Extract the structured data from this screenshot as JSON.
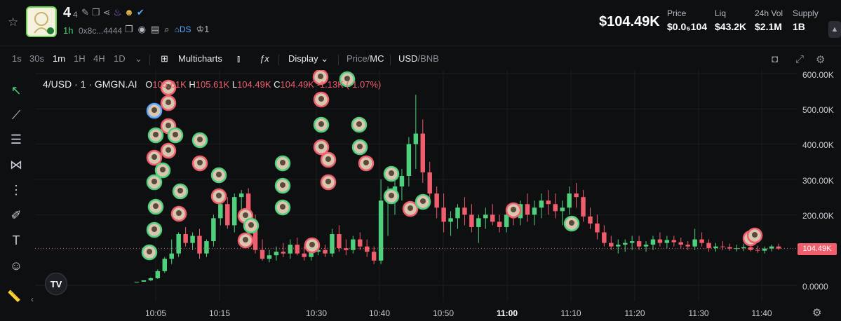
{
  "header": {
    "token_name": "4",
    "token_sub": "4",
    "age": "1h",
    "address": "0x8c...4444",
    "ds_label": "DS",
    "holders_count": "1",
    "market_cap": "$104.49K",
    "stats": [
      {
        "label": "Price",
        "value": "$0.0₅104"
      },
      {
        "label": "Liq",
        "value": "$43.2K"
      },
      {
        "label": "24h Vol",
        "value": "$2.1M"
      },
      {
        "label": "Supply",
        "value": "1B"
      }
    ]
  },
  "toolbar": {
    "intervals": [
      "1s",
      "30s",
      "1m",
      "1H",
      "4H",
      "1D"
    ],
    "active_interval": "1m",
    "multicharts": "Multicharts",
    "display": "Display",
    "price_label": "Price",
    "mc_label": "MC",
    "usd_label": "USD",
    "bnb_label": "BNB"
  },
  "legend": {
    "symbol": "4/USD · 1 · GMGN.AI",
    "o_key": "O",
    "o_val": "105.61K",
    "h_key": "H",
    "h_val": "105.61K",
    "l_key": "L",
    "l_val": "104.49K",
    "c_key": "C",
    "c_val": "104.49K",
    "change": "-1.13K (-1.07%)"
  },
  "current_price_tag": "104.49K",
  "colors": {
    "up": "#4fd07c",
    "down": "#f05d6c",
    "bg": "#0e0f11"
  },
  "chart_data": {
    "type": "candlestick",
    "y_ticks": [
      "600.00K",
      "500.00K",
      "400.00K",
      "300.00K",
      "200.00K",
      "100.00K",
      "0.0000"
    ],
    "y_range": [
      0,
      600000
    ],
    "x_ticks": [
      "10:05",
      "10:15",
      "10:30",
      "10:40",
      "10:50",
      "11:00",
      "11:10",
      "11:20",
      "11:30",
      "11:40"
    ],
    "last_price": 104490,
    "candles": [
      [
        8,
        10,
        8,
        10
      ],
      [
        10,
        14,
        10,
        14
      ],
      [
        14,
        22,
        12,
        20
      ],
      [
        20,
        45,
        18,
        40
      ],
      [
        40,
        80,
        35,
        75
      ],
      [
        75,
        130,
        60,
        90
      ],
      [
        90,
        150,
        80,
        145
      ],
      [
        145,
        165,
        110,
        120
      ],
      [
        120,
        150,
        100,
        140
      ],
      [
        140,
        160,
        75,
        90
      ],
      [
        90,
        130,
        80,
        125
      ],
      [
        125,
        200,
        110,
        190
      ],
      [
        190,
        240,
        170,
        230
      ],
      [
        230,
        250,
        160,
        170
      ],
      [
        170,
        260,
        150,
        250
      ],
      [
        250,
        270,
        200,
        260
      ],
      [
        260,
        275,
        150,
        170
      ],
      [
        170,
        200,
        90,
        100
      ],
      [
        100,
        130,
        70,
        75
      ],
      [
        75,
        100,
        65,
        85
      ],
      [
        85,
        110,
        70,
        95
      ],
      [
        95,
        120,
        80,
        90
      ],
      [
        90,
        130,
        75,
        115
      ],
      [
        115,
        135,
        85,
        90
      ],
      [
        90,
        110,
        70,
        80
      ],
      [
        80,
        100,
        70,
        95
      ],
      [
        95,
        120,
        85,
        100
      ],
      [
        100,
        115,
        80,
        90
      ],
      [
        90,
        160,
        80,
        145
      ],
      [
        145,
        170,
        95,
        105
      ],
      [
        105,
        130,
        85,
        100
      ],
      [
        100,
        140,
        90,
        130
      ],
      [
        130,
        150,
        100,
        110
      ],
      [
        110,
        130,
        80,
        95
      ],
      [
        95,
        110,
        60,
        70
      ],
      [
        70,
        300,
        60,
        240
      ],
      [
        240,
        280,
        140,
        260
      ],
      [
        260,
        300,
        200,
        280
      ],
      [
        280,
        330,
        240,
        310
      ],
      [
        310,
        420,
        280,
        400
      ],
      [
        400,
        540,
        330,
        430
      ],
      [
        430,
        470,
        290,
        320
      ],
      [
        320,
        350,
        240,
        260
      ],
      [
        260,
        280,
        190,
        220
      ],
      [
        220,
        260,
        150,
        180
      ],
      [
        180,
        210,
        140,
        190
      ],
      [
        190,
        230,
        160,
        220
      ],
      [
        220,
        250,
        170,
        200
      ],
      [
        200,
        230,
        150,
        165
      ],
      [
        165,
        200,
        120,
        190
      ],
      [
        190,
        220,
        160,
        200
      ],
      [
        200,
        230,
        170,
        180
      ],
      [
        180,
        200,
        150,
        165
      ],
      [
        165,
        210,
        150,
        200
      ],
      [
        200,
        230,
        170,
        190
      ],
      [
        190,
        240,
        170,
        230
      ],
      [
        230,
        260,
        180,
        200
      ],
      [
        200,
        240,
        170,
        220
      ],
      [
        220,
        260,
        190,
        240
      ],
      [
        240,
        270,
        200,
        230
      ],
      [
        230,
        260,
        190,
        210
      ],
      [
        210,
        240,
        170,
        220
      ],
      [
        220,
        280,
        200,
        260
      ],
      [
        260,
        290,
        220,
        250
      ],
      [
        250,
        270,
        180,
        195
      ],
      [
        195,
        220,
        160,
        175
      ],
      [
        175,
        200,
        130,
        150
      ],
      [
        150,
        170,
        110,
        120
      ],
      [
        120,
        140,
        100,
        110
      ],
      [
        110,
        130,
        90,
        115
      ],
      [
        115,
        130,
        95,
        120
      ],
      [
        120,
        140,
        100,
        125
      ],
      [
        125,
        140,
        100,
        110
      ],
      [
        110,
        125,
        95,
        115
      ],
      [
        115,
        140,
        100,
        130
      ],
      [
        130,
        150,
        110,
        120
      ],
      [
        120,
        140,
        105,
        128
      ],
      [
        128,
        140,
        110,
        122
      ],
      [
        122,
        135,
        105,
        115
      ],
      [
        115,
        125,
        100,
        110
      ],
      [
        110,
        160,
        100,
        130
      ],
      [
        130,
        150,
        110,
        120
      ],
      [
        120,
        130,
        95,
        105
      ],
      [
        105,
        120,
        95,
        110
      ],
      [
        110,
        125,
        100,
        108
      ],
      [
        108,
        118,
        98,
        104
      ],
      [
        104,
        115,
        96,
        105
      ],
      [
        105,
        118,
        97,
        108
      ],
      [
        108,
        116,
        96,
        100
      ],
      [
        100,
        112,
        92,
        98
      ],
      [
        98,
        110,
        90,
        104
      ],
      [
        104,
        115,
        96,
        110
      ],
      [
        110,
        118,
        100,
        104
      ]
    ]
  }
}
